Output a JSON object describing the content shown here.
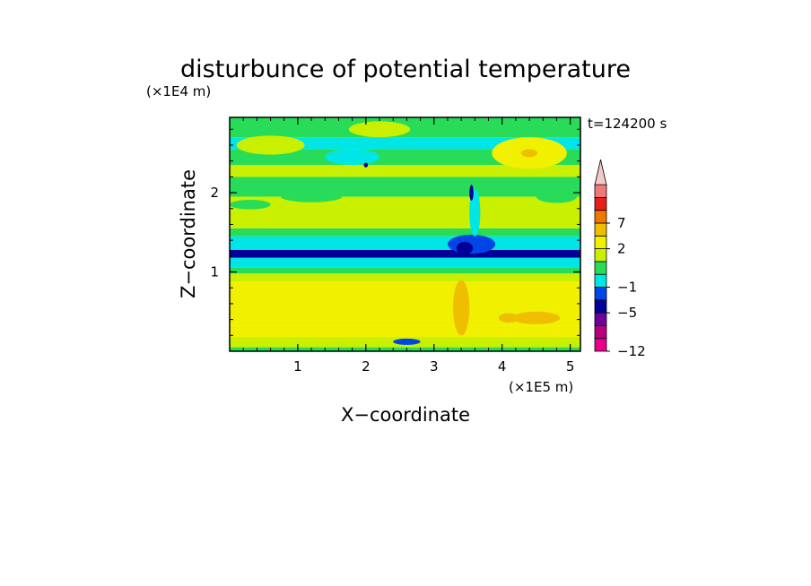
{
  "chart_data": {
    "type": "heatmap",
    "title": "disturbunce of potential temperature",
    "xlabel": "X−coordinate",
    "ylabel": "Z−coordinate",
    "x_unit": "(×1E5 m)",
    "y_unit": "(×1E4 m)",
    "time_label": "t=124200 s",
    "xlim": [
      0,
      5.15
    ],
    "ylim": [
      0,
      2.95
    ],
    "x_ticks": [
      {
        "value": 1,
        "label": "1"
      },
      {
        "value": 2,
        "label": "2"
      },
      {
        "value": 3,
        "label": "3"
      },
      {
        "value": 4,
        "label": "4"
      },
      {
        "value": 5,
        "label": "5"
      }
    ],
    "y_ticks": [
      {
        "value": 1,
        "label": "1"
      },
      {
        "value": 2,
        "label": "2"
      }
    ],
    "colorbar": {
      "levels": [
        -12,
        -9,
        -7,
        -5,
        -3,
        -1,
        0,
        1,
        2,
        4,
        7,
        9,
        12
      ],
      "colors": [
        "#e6008c",
        "#b4007d",
        "#6e0096",
        "#000096",
        "#0046e6",
        "#00e6e6",
        "#28dc5a",
        "#c8f000",
        "#f0f000",
        "#f0be00",
        "#f07800",
        "#e61e1e",
        "#f07878",
        "#f5c8c8"
      ],
      "extend": "max",
      "labels": [
        {
          "value": 7,
          "label": "7"
        },
        {
          "value": 2,
          "label": "2"
        },
        {
          "value": -1,
          "label": "−1"
        },
        {
          "value": -5,
          "label": "−5"
        },
        {
          "value": -12,
          "label": "−12"
        }
      ]
    },
    "bands": [
      {
        "z0": 0.0,
        "z1": 0.05,
        "value": 0.5
      },
      {
        "z0": 0.05,
        "z1": 0.18,
        "value": 1.5
      },
      {
        "z0": 0.18,
        "z1": 0.32,
        "value": 2.5
      },
      {
        "z0": 0.32,
        "z1": 0.88,
        "value": 3.0
      },
      {
        "z0": 0.88,
        "z1": 0.98,
        "value": 1.5
      },
      {
        "z0": 0.98,
        "z1": 1.06,
        "value": 0.5
      },
      {
        "z0": 1.06,
        "z1": 1.18,
        "value": -0.5
      },
      {
        "z0": 1.18,
        "z1": 1.28,
        "value": -3.5
      },
      {
        "z0": 1.28,
        "z1": 1.45,
        "value": -0.5
      },
      {
        "z0": 1.45,
        "z1": 1.55,
        "value": 0.5
      },
      {
        "z0": 1.55,
        "z1": 1.95,
        "value": 1.5
      },
      {
        "z0": 1.95,
        "z1": 2.2,
        "value": 0.5
      },
      {
        "z0": 2.2,
        "z1": 2.35,
        "value": 1.5
      },
      {
        "z0": 2.35,
        "z1": 2.55,
        "value": 0.5
      },
      {
        "z0": 2.55,
        "z1": 2.7,
        "value": -0.5
      },
      {
        "z0": 2.7,
        "z1": 2.95,
        "value": 0.5
      }
    ],
    "patches": [
      {
        "x": 0.6,
        "z": 2.6,
        "rx": 0.5,
        "rz": 0.12,
        "value": 1.5
      },
      {
        "x": 1.8,
        "z": 2.45,
        "rx": 0.4,
        "rz": 0.1,
        "value": -0.5
      },
      {
        "x": 2.2,
        "z": 2.8,
        "rx": 0.45,
        "rz": 0.1,
        "value": 1.5
      },
      {
        "x": 4.4,
        "z": 2.5,
        "rx": 0.55,
        "rz": 0.2,
        "value": 3.0
      },
      {
        "x": 4.4,
        "z": 2.5,
        "rx": 0.12,
        "rz": 0.05,
        "value": 5.0
      },
      {
        "x": 2.0,
        "z": 2.35,
        "rx": 0.03,
        "rz": 0.03,
        "value": -4.0
      },
      {
        "x": 3.55,
        "z": 1.35,
        "rx": 0.35,
        "rz": 0.12,
        "value": -1.5
      },
      {
        "x": 3.45,
        "z": 1.3,
        "rx": 0.12,
        "rz": 0.08,
        "value": -3.5
      },
      {
        "x": 3.6,
        "z": 1.75,
        "rx": 0.08,
        "rz": 0.3,
        "value": -0.5
      },
      {
        "x": 3.55,
        "z": 2.0,
        "rx": 0.03,
        "rz": 0.1,
        "value": -4.0
      },
      {
        "x": 4.5,
        "z": 0.42,
        "rx": 0.35,
        "rz": 0.08,
        "value": 5.0
      },
      {
        "x": 4.1,
        "z": 0.42,
        "rx": 0.15,
        "rz": 0.06,
        "value": 4.5
      },
      {
        "x": 2.6,
        "z": 0.12,
        "rx": 0.2,
        "rz": 0.04,
        "value": -1.5
      },
      {
        "x": 3.4,
        "z": 0.55,
        "rx": 0.12,
        "rz": 0.35,
        "value": 4.0
      },
      {
        "x": 0.3,
        "z": 1.85,
        "rx": 0.3,
        "rz": 0.06,
        "value": 0.5
      },
      {
        "x": 1.2,
        "z": 1.95,
        "rx": 0.45,
        "rz": 0.07,
        "value": 0.5
      },
      {
        "x": 4.8,
        "z": 1.95,
        "rx": 0.3,
        "rz": 0.08,
        "value": 0.5
      }
    ]
  }
}
